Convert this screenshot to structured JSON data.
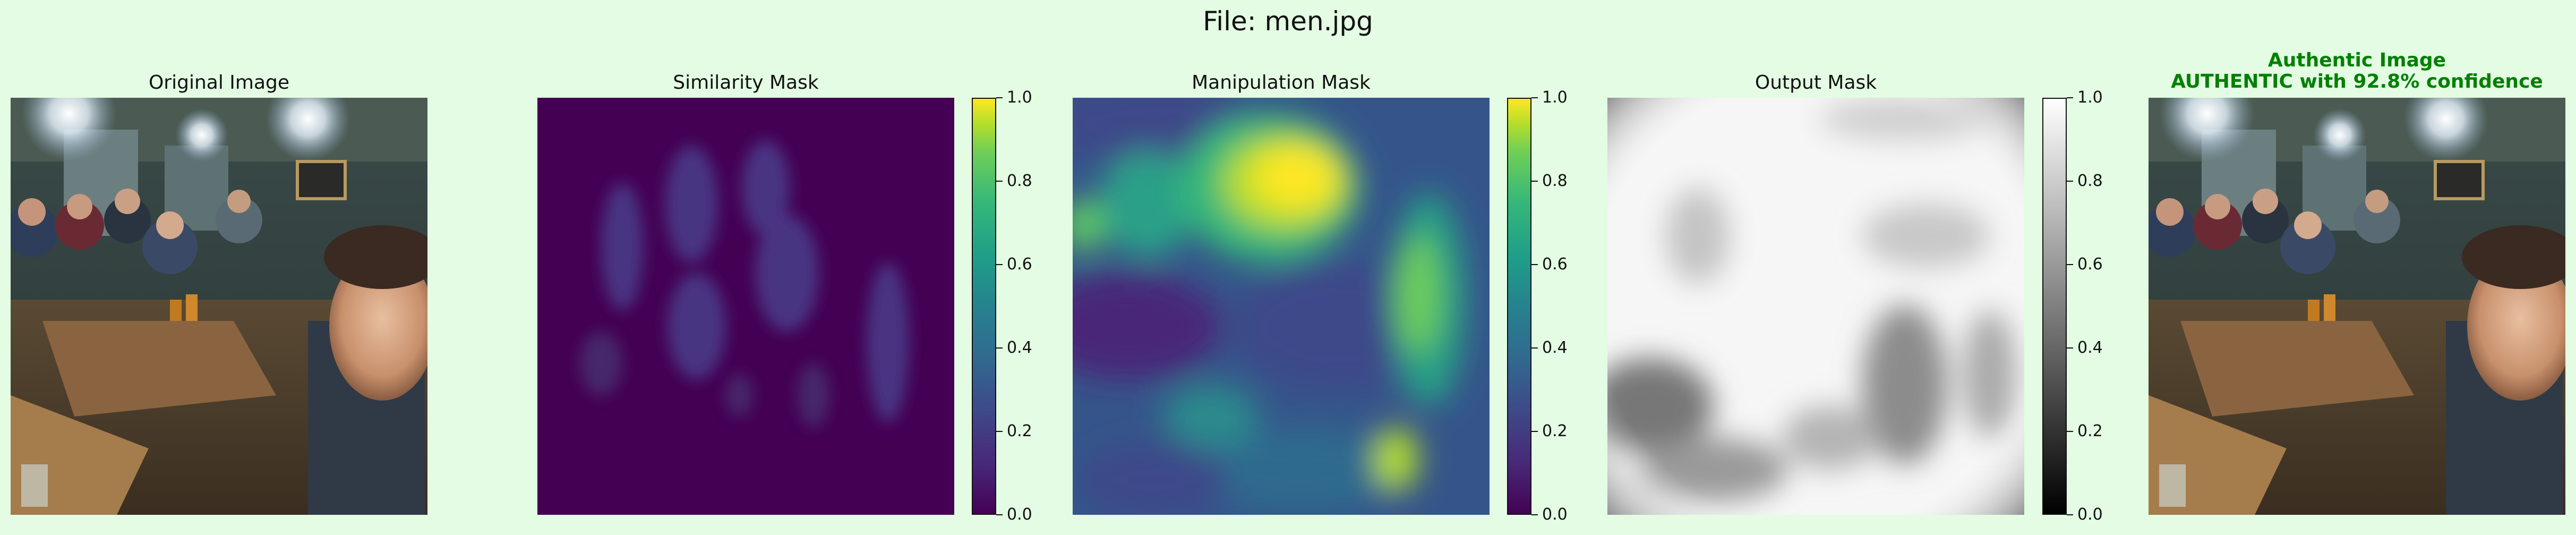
{
  "figure_title": "File: men.jpg",
  "panels": [
    {
      "title": "Original Image"
    },
    {
      "title": "Similarity Mask"
    },
    {
      "title": "Manipulation Mask"
    },
    {
      "title": "Output Mask"
    },
    {
      "title": "Authentic Image",
      "subtitle": "AUTHENTIC with 92.8% confidence"
    }
  ],
  "verdict_color": "#008000",
  "colorbars": [
    {
      "colormap": "viridis",
      "ticks": [
        "0.0",
        "0.2",
        "0.4",
        "0.6",
        "0.8",
        "1.0"
      ]
    },
    {
      "colormap": "viridis",
      "ticks": [
        "0.0",
        "0.2",
        "0.4",
        "0.6",
        "0.8",
        "1.0"
      ]
    },
    {
      "colormap": "gray",
      "ticks": [
        "0.0",
        "0.2",
        "0.4",
        "0.6",
        "0.8",
        "1.0"
      ]
    }
  ],
  "chart_data": {
    "type": "heatmap",
    "title": "File: men.jpg",
    "subplots": [
      {
        "title": "Original Image",
        "kind": "photo"
      },
      {
        "title": "Similarity Mask",
        "kind": "heatmap",
        "colormap": "viridis",
        "vmin": 0.0,
        "vmax": 1.0
      },
      {
        "title": "Manipulation Mask",
        "kind": "heatmap",
        "colormap": "viridis",
        "vmin": 0.0,
        "vmax": 1.0
      },
      {
        "title": "Output Mask",
        "kind": "heatmap",
        "colormap": "gray",
        "vmin": 0.0,
        "vmax": 1.0
      },
      {
        "title": "Authentic Image",
        "subtitle": "AUTHENTIC with 92.8% confidence",
        "kind": "photo"
      }
    ]
  }
}
